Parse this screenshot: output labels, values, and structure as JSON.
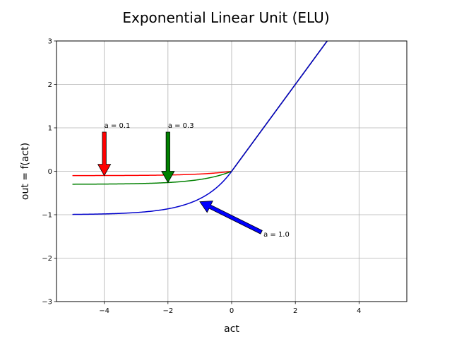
{
  "chart_data": {
    "type": "line",
    "title": "Exponential Linear Unit (ELU)",
    "xlabel": "act",
    "ylabel": "out = f(act)",
    "xlim": [
      -5.5,
      5.5
    ],
    "ylim": [
      -3,
      3
    ],
    "xticks": [
      -4,
      -2,
      0,
      2,
      4
    ],
    "yticks": [
      -3,
      -2,
      -1,
      0,
      1,
      2,
      3
    ],
    "grid": true,
    "x_range": [
      -5,
      5
    ],
    "series": [
      {
        "name": "a = 0.1",
        "alpha": 0.1,
        "color": "#ff0000"
      },
      {
        "name": "a = 0.3",
        "alpha": 0.3,
        "color": "#008000"
      },
      {
        "name": "a = 1.0",
        "alpha": 1.0,
        "color": "#0000cc"
      }
    ],
    "annotations": [
      {
        "text": "a = 0.1",
        "text_xy": [
          -4,
          1.0
        ],
        "arrow_to": [
          -4,
          -0.1
        ],
        "color": "#ff0000"
      },
      {
        "text": "a = 0.3",
        "text_xy": [
          -2,
          1.0
        ],
        "arrow_to": [
          -2,
          -0.26
        ],
        "color": "#008000"
      },
      {
        "text": "a = 1.0",
        "text_xy": [
          1,
          -1.5
        ],
        "arrow_to": [
          -1,
          -0.7
        ],
        "color": "#0000ff"
      }
    ]
  }
}
